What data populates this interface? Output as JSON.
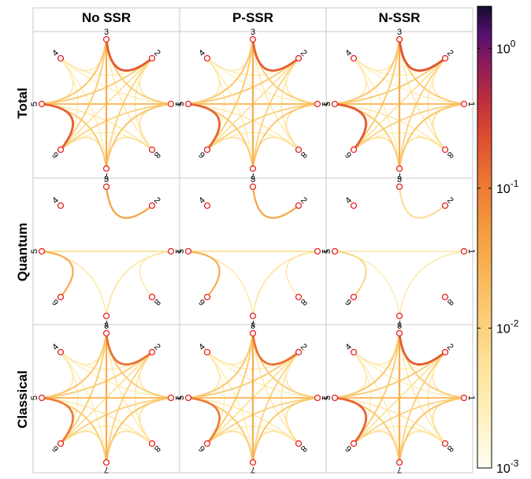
{
  "columns": [
    "No SSR",
    "P-SSR",
    "N-SSR"
  ],
  "rows": [
    "Total",
    "Quantum",
    "Classical"
  ],
  "node_labels": [
    "1",
    "2",
    "3",
    "4",
    "5",
    "6",
    "7",
    "8"
  ],
  "colorbar": {
    "scale": "log",
    "range": [
      0.001,
      2
    ],
    "tick_values": [
      1,
      0.1,
      0.01,
      0.001
    ],
    "tick_labels": [
      {
        "base": "10",
        "exp": "0"
      },
      {
        "base": "10",
        "exp": "-1"
      },
      {
        "base": "10",
        "exp": "-2"
      },
      {
        "base": "10",
        "exp": "-3"
      }
    ],
    "colormap": "inferno-reversed"
  },
  "colors": {
    "node_stroke": "#e8201c",
    "grid": "#c8c8c8"
  },
  "chart_data": {
    "type": "network-grid",
    "panels": {
      "Total|No SSR": [
        {
          "a": 2,
          "b": 3,
          "v": 0.18
        },
        {
          "a": 5,
          "b": 6,
          "v": 0.16
        },
        {
          "a": 1,
          "b": 5,
          "v": 0.02
        },
        {
          "a": 3,
          "b": 7,
          "v": 0.03
        },
        {
          "a": 1,
          "b": 3,
          "v": 0.012
        },
        {
          "a": 2,
          "b": 5,
          "v": 0.012
        },
        {
          "a": 3,
          "b": 5,
          "v": 0.015
        },
        {
          "a": 1,
          "b": 7,
          "v": 0.015
        },
        {
          "a": 6,
          "b": 3,
          "v": 0.012
        },
        {
          "a": 2,
          "b": 7,
          "v": 0.01
        },
        {
          "a": 5,
          "b": 7,
          "v": 0.012
        },
        {
          "a": 1,
          "b": 6,
          "v": 0.01
        },
        {
          "a": 6,
          "b": 7,
          "v": 0.006
        },
        {
          "a": 7,
          "b": 8,
          "v": 0.006
        },
        {
          "a": 1,
          "b": 8,
          "v": 0.006
        },
        {
          "a": 3,
          "b": 4,
          "v": 0.004
        },
        {
          "a": 4,
          "b": 5,
          "v": 0.004
        },
        {
          "a": 1,
          "b": 2,
          "v": 0.004
        },
        {
          "a": 2,
          "b": 8,
          "v": 0.004
        },
        {
          "a": 4,
          "b": 2,
          "v": 0.003
        },
        {
          "a": 4,
          "b": 6,
          "v": 0.003
        },
        {
          "a": 8,
          "b": 5,
          "v": 0.004
        },
        {
          "a": 8,
          "b": 3,
          "v": 0.004
        },
        {
          "a": 8,
          "b": 6,
          "v": 0.003
        },
        {
          "a": 4,
          "b": 7,
          "v": 0.003
        },
        {
          "a": 2,
          "b": 6,
          "v": 0.006
        },
        {
          "a": 4,
          "b": 1,
          "v": 0.003
        }
      ],
      "Total|P-SSR": [
        {
          "a": 2,
          "b": 3,
          "v": 0.16
        },
        {
          "a": 5,
          "b": 6,
          "v": 0.15
        },
        {
          "a": 1,
          "b": 5,
          "v": 0.02
        },
        {
          "a": 3,
          "b": 7,
          "v": 0.03
        },
        {
          "a": 1,
          "b": 3,
          "v": 0.012
        },
        {
          "a": 2,
          "b": 5,
          "v": 0.012
        },
        {
          "a": 3,
          "b": 5,
          "v": 0.015
        },
        {
          "a": 1,
          "b": 7,
          "v": 0.015
        },
        {
          "a": 6,
          "b": 3,
          "v": 0.012
        },
        {
          "a": 2,
          "b": 7,
          "v": 0.01
        },
        {
          "a": 5,
          "b": 7,
          "v": 0.012
        },
        {
          "a": 1,
          "b": 6,
          "v": 0.01
        },
        {
          "a": 6,
          "b": 7,
          "v": 0.006
        },
        {
          "a": 7,
          "b": 8,
          "v": 0.006
        },
        {
          "a": 1,
          "b": 8,
          "v": 0.006
        },
        {
          "a": 3,
          "b": 4,
          "v": 0.004
        },
        {
          "a": 4,
          "b": 5,
          "v": 0.004
        },
        {
          "a": 1,
          "b": 2,
          "v": 0.004
        },
        {
          "a": 2,
          "b": 8,
          "v": 0.004
        },
        {
          "a": 4,
          "b": 2,
          "v": 0.003
        },
        {
          "a": 4,
          "b": 6,
          "v": 0.003
        },
        {
          "a": 8,
          "b": 5,
          "v": 0.004
        },
        {
          "a": 8,
          "b": 3,
          "v": 0.004
        },
        {
          "a": 8,
          "b": 6,
          "v": 0.003
        },
        {
          "a": 4,
          "b": 7,
          "v": 0.003
        },
        {
          "a": 2,
          "b": 6,
          "v": 0.006
        },
        {
          "a": 4,
          "b": 1,
          "v": 0.003
        }
      ],
      "Total|N-SSR": [
        {
          "a": 2,
          "b": 3,
          "v": 0.2
        },
        {
          "a": 5,
          "b": 6,
          "v": 0.17
        },
        {
          "a": 1,
          "b": 5,
          "v": 0.02
        },
        {
          "a": 3,
          "b": 7,
          "v": 0.03
        },
        {
          "a": 1,
          "b": 3,
          "v": 0.012
        },
        {
          "a": 2,
          "b": 5,
          "v": 0.012
        },
        {
          "a": 3,
          "b": 5,
          "v": 0.015
        },
        {
          "a": 1,
          "b": 7,
          "v": 0.015
        },
        {
          "a": 6,
          "b": 3,
          "v": 0.012
        },
        {
          "a": 2,
          "b": 7,
          "v": 0.01
        },
        {
          "a": 5,
          "b": 7,
          "v": 0.012
        },
        {
          "a": 1,
          "b": 6,
          "v": 0.01
        },
        {
          "a": 6,
          "b": 7,
          "v": 0.006
        },
        {
          "a": 7,
          "b": 8,
          "v": 0.006
        },
        {
          "a": 1,
          "b": 8,
          "v": 0.006
        },
        {
          "a": 3,
          "b": 4,
          "v": 0.004
        },
        {
          "a": 4,
          "b": 5,
          "v": 0.004
        },
        {
          "a": 1,
          "b": 2,
          "v": 0.004
        },
        {
          "a": 2,
          "b": 8,
          "v": 0.004
        },
        {
          "a": 4,
          "b": 2,
          "v": 0.003
        },
        {
          "a": 4,
          "b": 6,
          "v": 0.003
        },
        {
          "a": 8,
          "b": 5,
          "v": 0.004
        },
        {
          "a": 8,
          "b": 3,
          "v": 0.004
        },
        {
          "a": 8,
          "b": 6,
          "v": 0.003
        },
        {
          "a": 4,
          "b": 7,
          "v": 0.003
        },
        {
          "a": 2,
          "b": 6,
          "v": 0.006
        },
        {
          "a": 4,
          "b": 1,
          "v": 0.003
        }
      ],
      "Quantum|No SSR": [
        {
          "a": 2,
          "b": 3,
          "v": 0.04
        },
        {
          "a": 5,
          "b": 6,
          "v": 0.03
        },
        {
          "a": 1,
          "b": 5,
          "v": 0.006
        },
        {
          "a": 1,
          "b": 7,
          "v": 0.005
        },
        {
          "a": 7,
          "b": 5,
          "v": 0.004
        },
        {
          "a": 1,
          "b": 8,
          "v": 0.004
        },
        {
          "a": 6,
          "b": 5,
          "v": 0.003
        }
      ],
      "Quantum|P-SSR": [
        {
          "a": 2,
          "b": 3,
          "v": 0.035
        },
        {
          "a": 5,
          "b": 6,
          "v": 0.03
        },
        {
          "a": 1,
          "b": 5,
          "v": 0.006
        },
        {
          "a": 1,
          "b": 7,
          "v": 0.005
        },
        {
          "a": 7,
          "b": 5,
          "v": 0.004
        },
        {
          "a": 1,
          "b": 8,
          "v": 0.004
        }
      ],
      "Quantum|N-SSR": [
        {
          "a": 2,
          "b": 3,
          "v": 0.008
        },
        {
          "a": 5,
          "b": 6,
          "v": 0.01
        },
        {
          "a": 1,
          "b": 5,
          "v": 0.004
        },
        {
          "a": 1,
          "b": 7,
          "v": 0.004
        },
        {
          "a": 7,
          "b": 5,
          "v": 0.003
        }
      ],
      "Classical|No SSR": [
        {
          "a": 2,
          "b": 3,
          "v": 0.12
        },
        {
          "a": 5,
          "b": 6,
          "v": 0.1
        },
        {
          "a": 1,
          "b": 5,
          "v": 0.02
        },
        {
          "a": 3,
          "b": 7,
          "v": 0.03
        },
        {
          "a": 1,
          "b": 3,
          "v": 0.012
        },
        {
          "a": 2,
          "b": 5,
          "v": 0.012
        },
        {
          "a": 3,
          "b": 5,
          "v": 0.015
        },
        {
          "a": 1,
          "b": 7,
          "v": 0.015
        },
        {
          "a": 6,
          "b": 3,
          "v": 0.012
        },
        {
          "a": 2,
          "b": 7,
          "v": 0.01
        },
        {
          "a": 5,
          "b": 7,
          "v": 0.012
        },
        {
          "a": 1,
          "b": 6,
          "v": 0.01
        },
        {
          "a": 6,
          "b": 7,
          "v": 0.006
        },
        {
          "a": 7,
          "b": 8,
          "v": 0.006
        },
        {
          "a": 1,
          "b": 8,
          "v": 0.006
        },
        {
          "a": 3,
          "b": 4,
          "v": 0.004
        },
        {
          "a": 4,
          "b": 5,
          "v": 0.004
        },
        {
          "a": 1,
          "b": 2,
          "v": 0.004
        },
        {
          "a": 2,
          "b": 8,
          "v": 0.004
        },
        {
          "a": 4,
          "b": 2,
          "v": 0.003
        },
        {
          "a": 4,
          "b": 6,
          "v": 0.003
        },
        {
          "a": 8,
          "b": 5,
          "v": 0.004
        },
        {
          "a": 8,
          "b": 3,
          "v": 0.004
        },
        {
          "a": 8,
          "b": 6,
          "v": 0.003
        },
        {
          "a": 4,
          "b": 7,
          "v": 0.003
        },
        {
          "a": 2,
          "b": 6,
          "v": 0.006
        },
        {
          "a": 4,
          "b": 1,
          "v": 0.003
        }
      ],
      "Classical|P-SSR": [
        {
          "a": 2,
          "b": 3,
          "v": 0.12
        },
        {
          "a": 5,
          "b": 6,
          "v": 0.1
        },
        {
          "a": 1,
          "b": 5,
          "v": 0.02
        },
        {
          "a": 3,
          "b": 7,
          "v": 0.03
        },
        {
          "a": 1,
          "b": 3,
          "v": 0.012
        },
        {
          "a": 2,
          "b": 5,
          "v": 0.012
        },
        {
          "a": 3,
          "b": 5,
          "v": 0.015
        },
        {
          "a": 1,
          "b": 7,
          "v": 0.015
        },
        {
          "a": 6,
          "b": 3,
          "v": 0.012
        },
        {
          "a": 2,
          "b": 7,
          "v": 0.01
        },
        {
          "a": 5,
          "b": 7,
          "v": 0.012
        },
        {
          "a": 1,
          "b": 6,
          "v": 0.01
        },
        {
          "a": 6,
          "b": 7,
          "v": 0.006
        },
        {
          "a": 7,
          "b": 8,
          "v": 0.006
        },
        {
          "a": 1,
          "b": 8,
          "v": 0.006
        },
        {
          "a": 3,
          "b": 4,
          "v": 0.004
        },
        {
          "a": 4,
          "b": 5,
          "v": 0.004
        },
        {
          "a": 1,
          "b": 2,
          "v": 0.004
        },
        {
          "a": 2,
          "b": 8,
          "v": 0.004
        },
        {
          "a": 4,
          "b": 2,
          "v": 0.003
        },
        {
          "a": 4,
          "b": 6,
          "v": 0.003
        },
        {
          "a": 8,
          "b": 5,
          "v": 0.004
        },
        {
          "a": 8,
          "b": 3,
          "v": 0.004
        },
        {
          "a": 8,
          "b": 6,
          "v": 0.003
        },
        {
          "a": 4,
          "b": 7,
          "v": 0.003
        },
        {
          "a": 2,
          "b": 6,
          "v": 0.006
        },
        {
          "a": 4,
          "b": 1,
          "v": 0.003
        }
      ],
      "Classical|N-SSR": [
        {
          "a": 2,
          "b": 3,
          "v": 0.17
        },
        {
          "a": 5,
          "b": 6,
          "v": 0.15
        },
        {
          "a": 1,
          "b": 5,
          "v": 0.02
        },
        {
          "a": 3,
          "b": 7,
          "v": 0.03
        },
        {
          "a": 1,
          "b": 3,
          "v": 0.012
        },
        {
          "a": 2,
          "b": 5,
          "v": 0.012
        },
        {
          "a": 3,
          "b": 5,
          "v": 0.015
        },
        {
          "a": 1,
          "b": 7,
          "v": 0.015
        },
        {
          "a": 6,
          "b": 3,
          "v": 0.012
        },
        {
          "a": 2,
          "b": 7,
          "v": 0.01
        },
        {
          "a": 5,
          "b": 7,
          "v": 0.012
        },
        {
          "a": 1,
          "b": 6,
          "v": 0.01
        },
        {
          "a": 6,
          "b": 7,
          "v": 0.006
        },
        {
          "a": 7,
          "b": 8,
          "v": 0.006
        },
        {
          "a": 1,
          "b": 8,
          "v": 0.006
        },
        {
          "a": 3,
          "b": 4,
          "v": 0.004
        },
        {
          "a": 4,
          "b": 5,
          "v": 0.004
        },
        {
          "a": 1,
          "b": 2,
          "v": 0.004
        },
        {
          "a": 2,
          "b": 8,
          "v": 0.004
        },
        {
          "a": 4,
          "b": 2,
          "v": 0.003
        },
        {
          "a": 4,
          "b": 6,
          "v": 0.003
        },
        {
          "a": 8,
          "b": 5,
          "v": 0.004
        },
        {
          "a": 8,
          "b": 3,
          "v": 0.004
        },
        {
          "a": 8,
          "b": 6,
          "v": 0.003
        },
        {
          "a": 4,
          "b": 7,
          "v": 0.003
        },
        {
          "a": 2,
          "b": 6,
          "v": 0.006
        },
        {
          "a": 4,
          "b": 1,
          "v": 0.003
        }
      ]
    }
  }
}
